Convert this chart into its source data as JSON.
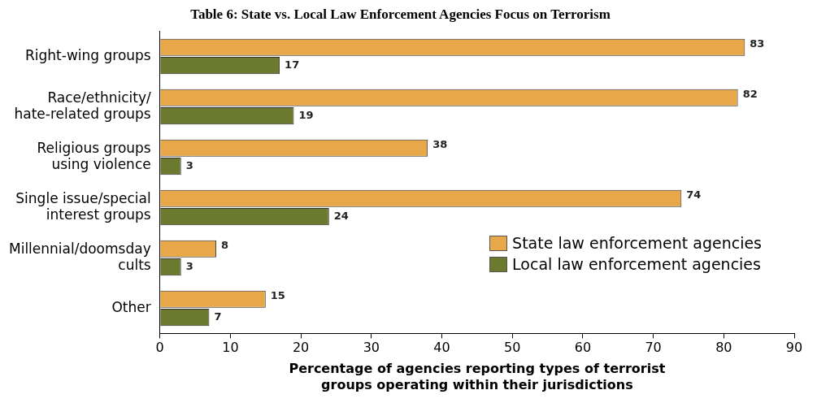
{
  "chart_data": {
    "type": "bar",
    "orientation": "horizontal",
    "title": "Table 6: State vs. Local Law Enforcement Agencies Focus on Terrorism",
    "categories": [
      "Right-wing groups",
      "Race/ethnicity/\nhate-related groups",
      "Religious groups\nusing violence",
      "Single issue/special\ninterest groups",
      "Millennial/doomsday\ncults",
      "Other"
    ],
    "series": [
      {
        "name": "State law enforcement agencies",
        "color": "#e8a84a",
        "values": [
          83,
          82,
          38,
          74,
          8,
          15
        ]
      },
      {
        "name": "Local law enforcement agencies",
        "color": "#6b7a2e",
        "values": [
          17,
          19,
          3,
          24,
          3,
          7
        ]
      }
    ],
    "xlim": [
      0,
      90
    ],
    "xticks": [
      0,
      10,
      20,
      30,
      40,
      50,
      60,
      70,
      80,
      90
    ],
    "xlabel": "Percentage of agencies reporting types of terrorist\ngroups operating within their jurisdictions",
    "data_labels": true,
    "grid": false,
    "legend": "bottom right"
  }
}
